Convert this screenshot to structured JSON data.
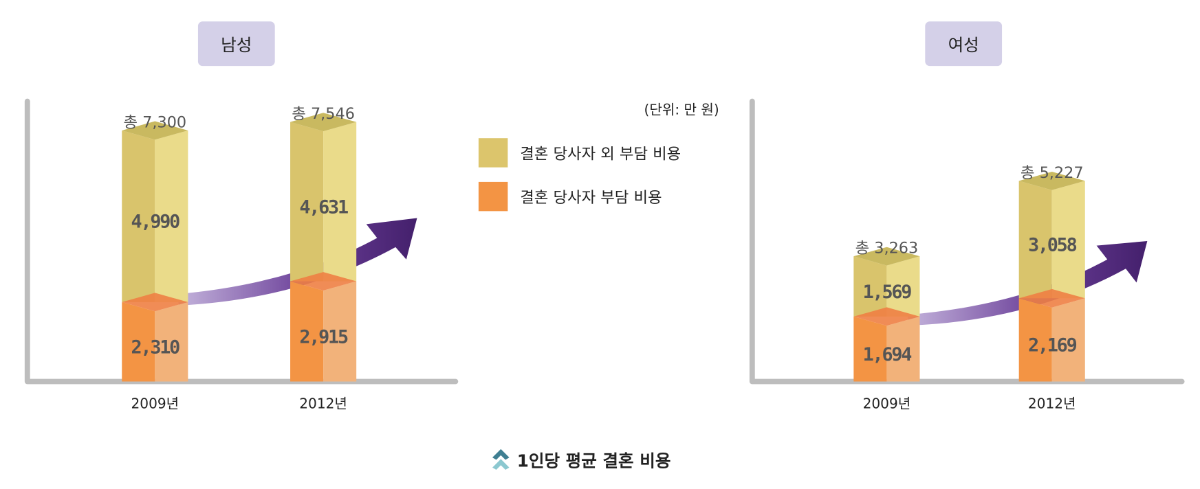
{
  "chart_data": [
    {
      "type": "bar",
      "stacked": true,
      "title": "남성",
      "categories": [
        "2009년",
        "2012년"
      ],
      "series": [
        {
          "name": "결혼 당사자 부담 비용",
          "values": [
            2310,
            2915
          ]
        },
        {
          "name": "결혼 당사자 외 부담 비용",
          "values": [
            4990,
            4631
          ]
        }
      ],
      "totals": [
        7300,
        7546
      ],
      "total_labels": [
        "총 7,300",
        "총 7,546"
      ],
      "value_labels": [
        [
          "2,310",
          "2,915"
        ],
        [
          "4,990",
          "4,631"
        ]
      ],
      "total_prefix": "총"
    },
    {
      "type": "bar",
      "stacked": true,
      "title": "여성",
      "categories": [
        "2009년",
        "2012년"
      ],
      "series": [
        {
          "name": "결혼 당사자 부담 비용",
          "values": [
            1694,
            2169
          ]
        },
        {
          "name": "결혼 당사자 외 부담 비용",
          "values": [
            1569,
            3058
          ]
        }
      ],
      "totals": [
        3263,
        5227
      ],
      "total_labels": [
        "총 3,263",
        "총 5,227"
      ],
      "value_labels": [
        [
          "1,694",
          "2,169"
        ],
        [
          "1,569",
          "3,058"
        ]
      ]
    }
  ],
  "unit": "(단위: 만 원)",
  "legend": [
    {
      "label": "결혼 당사자 외 부담 비용",
      "color": "#dcc56c"
    },
    {
      "label": "결혼 당사자 부담 비용",
      "color": "#f39444"
    }
  ],
  "caption": "1인당 평균 결혼 비용",
  "caption_icon": "double-chevron-up-icon",
  "colors": {
    "badge": "#d4d0e8",
    "axis": "#bdbdbd",
    "trend_arrow": "#4a2470",
    "caption_icon": "#5a9aa8"
  }
}
